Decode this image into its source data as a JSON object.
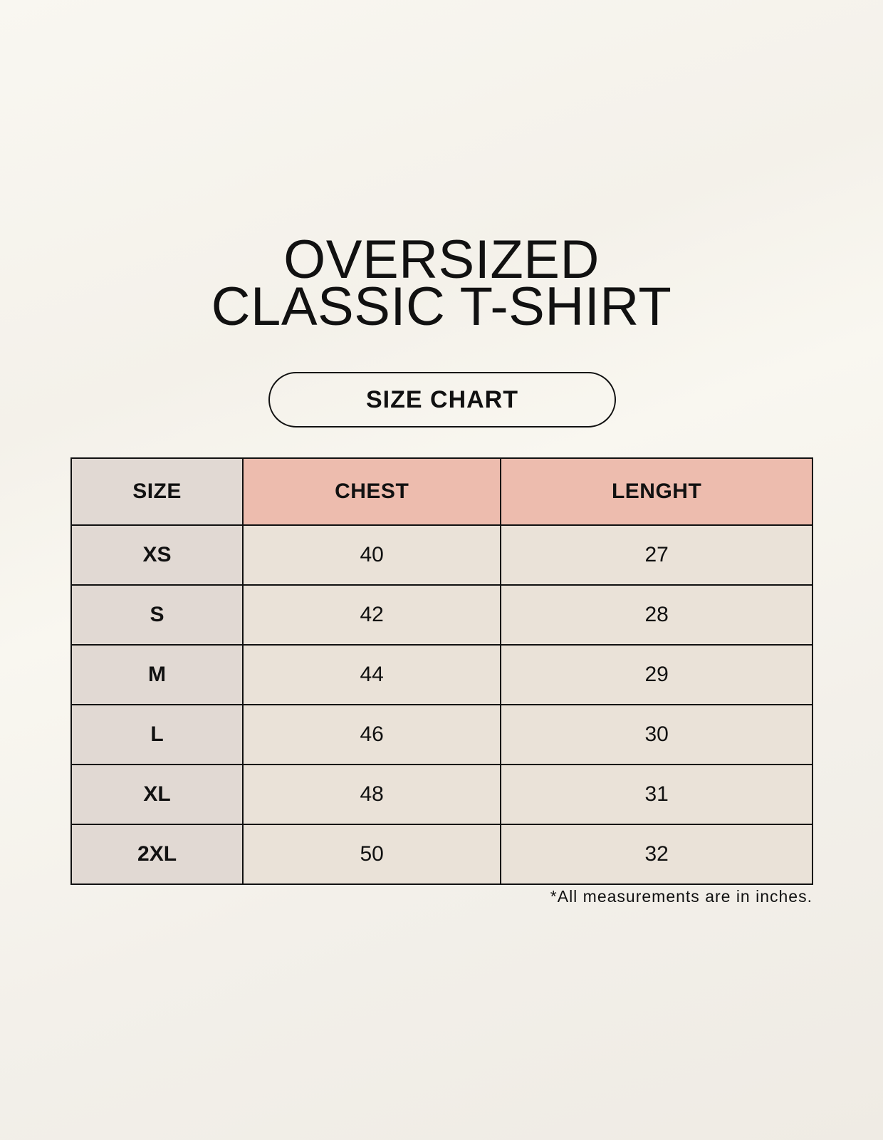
{
  "title_line1": "OVERSIZED",
  "title_line2": "CLASSIC T-SHIRT",
  "subtitle": "SIZE CHART",
  "table": {
    "headers": [
      "SIZE",
      "CHEST",
      "LENGHT"
    ],
    "rows": [
      [
        "XS",
        "40",
        "27"
      ],
      [
        "S",
        "42",
        "28"
      ],
      [
        "M",
        "44",
        "29"
      ],
      [
        "L",
        "46",
        "30"
      ],
      [
        "XL",
        "48",
        "31"
      ],
      [
        "2XL",
        "50",
        "32"
      ]
    ]
  },
  "footnote": "*All measurements are in inches.",
  "colors": {
    "size_column": "#e1d9d3",
    "header_accent": "#edbcae",
    "cell": "#eae2d8"
  }
}
